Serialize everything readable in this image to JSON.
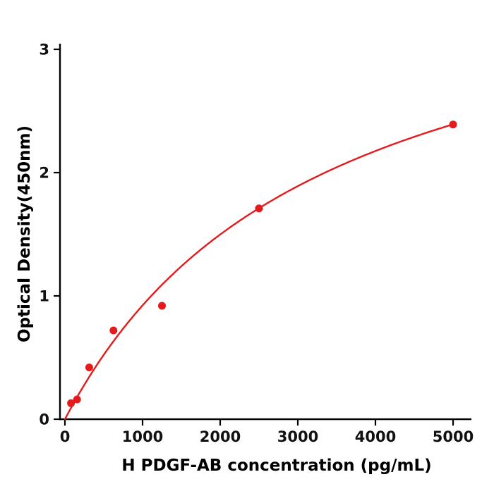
{
  "chart_data": {
    "type": "scatter",
    "title": "",
    "xlabel": "H  PDGF-AB concentration (pg/mL)",
    "ylabel": "Optical Density(450nm)",
    "x": [
      78.1,
      156.3,
      312.5,
      625,
      1250,
      2500,
      5000
    ],
    "y": [
      0.13,
      0.16,
      0.42,
      0.72,
      0.92,
      1.71,
      2.39
    ],
    "xlim": [
      0,
      5000
    ],
    "ylim": [
      0,
      3
    ],
    "xticks": [
      0,
      1000,
      2000,
      3000,
      4000,
      5000
    ],
    "yticks": [
      0,
      1,
      2,
      3
    ],
    "grid": false,
    "legend": "none",
    "point_color": "#e41a1c",
    "line_color": "#e41a1c",
    "axis_color": "#000000",
    "tick_label_color": "#111111",
    "fit_curve": {
      "model": "michaelis_menten",
      "vmax": 3.97,
      "km": 3300
    }
  }
}
